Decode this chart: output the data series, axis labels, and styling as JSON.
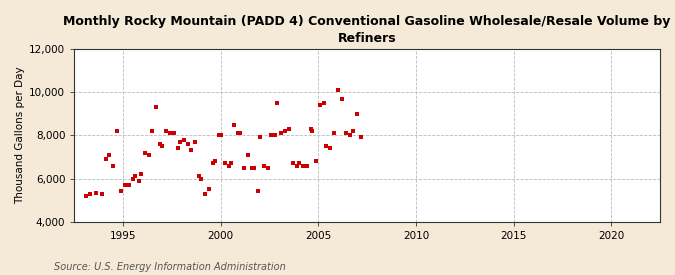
{
  "title": "Monthly Rocky Mountain (PADD 4) Conventional Gasoline Wholesale/Resale Volume by\nRefiners",
  "ylabel": "Thousand Gallons per Day",
  "source": "Source: U.S. Energy Information Administration",
  "figure_bg_color": "#f5ead8",
  "plot_bg_color": "#ffffff",
  "marker_color": "#cc0000",
  "xlim": [
    1992.5,
    2022.5
  ],
  "ylim": [
    4000,
    12000
  ],
  "xticks": [
    1995,
    2000,
    2005,
    2010,
    2015,
    2020
  ],
  "yticks": [
    4000,
    6000,
    8000,
    10000,
    12000
  ],
  "x": [
    1993.1,
    1993.3,
    1993.6,
    1993.9,
    1994.1,
    1994.3,
    1994.5,
    1994.7,
    1994.9,
    1995.1,
    1995.3,
    1995.5,
    1995.6,
    1995.8,
    1995.9,
    1996.1,
    1996.3,
    1996.5,
    1996.7,
    1996.9,
    1997.0,
    1997.2,
    1997.4,
    1997.6,
    1997.8,
    1997.9,
    1998.1,
    1998.3,
    1998.5,
    1998.7,
    1998.9,
    1999.0,
    1999.2,
    1999.4,
    1999.6,
    1999.7,
    1999.9,
    2000.0,
    2000.2,
    2000.4,
    2000.5,
    2000.7,
    2000.9,
    2001.0,
    2001.2,
    2001.4,
    2001.6,
    2001.7,
    2001.9,
    2002.0,
    2002.2,
    2002.4,
    2002.6,
    2002.8,
    2002.9,
    2003.1,
    2003.3,
    2003.5,
    2003.7,
    2003.9,
    2004.0,
    2004.2,
    2004.4,
    2004.6,
    2004.7,
    2004.9,
    2005.1,
    2005.3,
    2005.4,
    2005.6,
    2005.8,
    2006.0,
    2006.2,
    2006.4,
    2006.6,
    2006.8,
    2007.0,
    2007.2
  ],
  "y": [
    5200,
    5300,
    5350,
    5300,
    6900,
    7100,
    6600,
    8200,
    5400,
    5700,
    5700,
    6000,
    6100,
    5900,
    6200,
    7200,
    7100,
    8200,
    9300,
    7600,
    7500,
    8200,
    8100,
    8100,
    7400,
    7700,
    7800,
    7600,
    7300,
    7700,
    6100,
    6000,
    5300,
    5500,
    6700,
    6800,
    8000,
    8000,
    6700,
    6600,
    6700,
    8500,
    8100,
    8100,
    6500,
    7100,
    6500,
    6500,
    5400,
    7900,
    6600,
    6500,
    8000,
    8000,
    9500,
    8100,
    8200,
    8300,
    6700,
    6600,
    6700,
    6600,
    6600,
    8300,
    8200,
    6800,
    9400,
    9500,
    7500,
    7400,
    8100,
    10100,
    9700,
    8100,
    8000,
    8200,
    9000,
    7900
  ]
}
